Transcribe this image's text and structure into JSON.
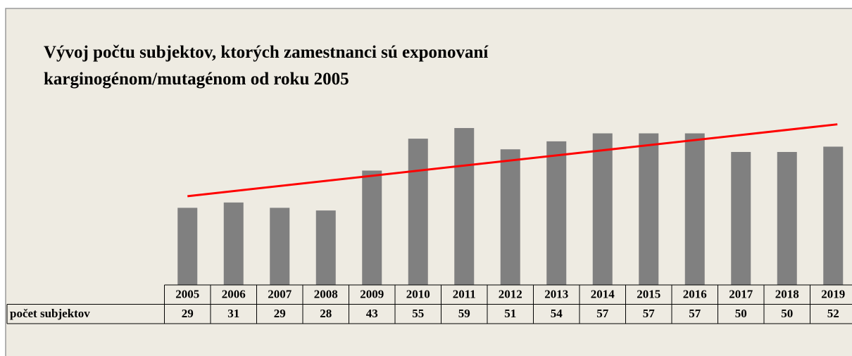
{
  "chart_data": {
    "type": "bar",
    "title": [
      "Vývoj počtu subjektov, ktorých zamestnanci sú exponovaní",
      "karginogénom/mutagénom od roku 2005"
    ],
    "categories": [
      "2005",
      "2006",
      "2007",
      "2008",
      "2009",
      "2010",
      "2011",
      "2012",
      "2013",
      "2014",
      "2015",
      "2016",
      "2017",
      "2018",
      "2019"
    ],
    "series": [
      {
        "name": "počet subjektov",
        "color": "#808080",
        "values": [
          29,
          31,
          29,
          28,
          43,
          55,
          59,
          51,
          54,
          57,
          57,
          57,
          50,
          50,
          52
        ]
      }
    ],
    "trendline": {
      "type": "linear",
      "color": "#ff0000"
    }
  }
}
